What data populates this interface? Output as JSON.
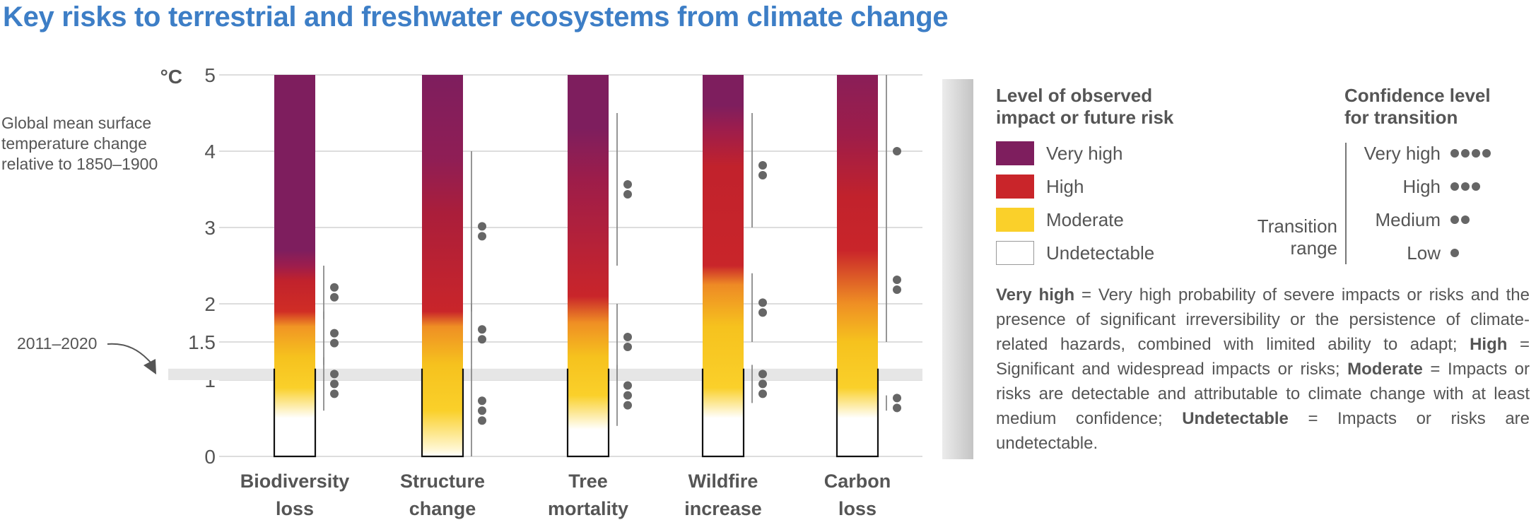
{
  "title": "Key risks to terrestrial and freshwater ecosystems from climate change",
  "chart_data": {
    "type": "bar",
    "title": "Key risks to terrestrial and freshwater ecosystems from climate change",
    "unit": "°C",
    "ylabel": "Global mean surface temperature change relative to 1850–1900",
    "ylim": [
      0,
      5
    ],
    "yticks": [
      "0",
      "1",
      "1.5",
      "2",
      "3",
      "4",
      "5"
    ],
    "ytick_values": [
      0,
      1,
      1.5,
      2,
      3,
      4,
      5
    ],
    "annotation": "2011–2020",
    "observed_band": [
      1.0,
      1.15
    ],
    "categories": [
      {
        "line1": "Biodiversity",
        "line2": "loss"
      },
      {
        "line1": "Structure",
        "line2": "change"
      },
      {
        "line1": "Tree",
        "line2": "mortality"
      },
      {
        "line1": "Wildfire",
        "line2": "increase"
      },
      {
        "line1": "Carbon",
        "line2": "loss"
      }
    ],
    "gradients": [
      [
        [
          0,
          "#ffffff"
        ],
        [
          0.5,
          "#ffffff"
        ],
        [
          0.9,
          "#fad02a"
        ],
        [
          1.3,
          "#f6c21e"
        ],
        [
          1.7,
          "#f19624"
        ],
        [
          1.9,
          "#d02d25"
        ],
        [
          2.3,
          "#c1222c"
        ],
        [
          2.5,
          "#9c1d4d"
        ],
        [
          2.7,
          "#7e1e5e"
        ],
        [
          5,
          "#7e1e5e"
        ]
      ],
      [
        [
          0,
          "#ffffff"
        ],
        [
          0.1,
          "#fff6d0"
        ],
        [
          0.6,
          "#fad02a"
        ],
        [
          1.2,
          "#f6c21e"
        ],
        [
          1.7,
          "#ef8f24"
        ],
        [
          1.9,
          "#c9252a"
        ],
        [
          3.2,
          "#aa1e3b"
        ],
        [
          3.9,
          "#8f1e55"
        ],
        [
          5,
          "#7e1e5e"
        ]
      ],
      [
        [
          0,
          "#ffffff"
        ],
        [
          0.35,
          "#ffffff"
        ],
        [
          0.8,
          "#fad02a"
        ],
        [
          1.3,
          "#f6c21e"
        ],
        [
          1.75,
          "#ef8f24"
        ],
        [
          2.1,
          "#c9252a"
        ],
        [
          3.6,
          "#9e1d49"
        ],
        [
          4.3,
          "#7e1e5e"
        ],
        [
          5,
          "#7e1e5e"
        ]
      ],
      [
        [
          0,
          "#ffffff"
        ],
        [
          0.5,
          "#ffffff"
        ],
        [
          0.9,
          "#fad02a"
        ],
        [
          1.7,
          "#f6c21e"
        ],
        [
          2.25,
          "#ee8a25"
        ],
        [
          2.5,
          "#c9252a"
        ],
        [
          3.8,
          "#c1222c"
        ],
        [
          4.3,
          "#9c1d4d"
        ],
        [
          4.6,
          "#7e1e5e"
        ],
        [
          5,
          "#7e1e5e"
        ]
      ],
      [
        [
          0,
          "#ffffff"
        ],
        [
          0.5,
          "#ffffff"
        ],
        [
          0.9,
          "#fad02a"
        ],
        [
          1.5,
          "#f6c21e"
        ],
        [
          2.0,
          "#ef8f24"
        ],
        [
          2.7,
          "#c9252a"
        ],
        [
          3.4,
          "#c1222c"
        ],
        [
          4.2,
          "#9e1d49"
        ],
        [
          5,
          "#8a1e58"
        ]
      ]
    ],
    "transitions": [
      [
        {
          "range": [
            0.6,
            1.3
          ],
          "confidence": "high",
          "dots": 3
        },
        {
          "range": [
            1.2,
            1.9
          ],
          "confidence": "medium",
          "dots": 2
        },
        {
          "range": [
            1.8,
            2.5
          ],
          "confidence": "medium",
          "dots": 2
        }
      ],
      [
        {
          "range": [
            0.0,
            1.2
          ],
          "confidence": "high",
          "dots": 3
        },
        {
          "range": [
            1.2,
            2.0
          ],
          "confidence": "medium",
          "dots": 2
        },
        {
          "range": [
            1.9,
            4.0
          ],
          "confidence": "medium",
          "dots": 2
        }
      ],
      [
        {
          "range": [
            0.4,
            1.2
          ],
          "confidence": "high",
          "dots": 3
        },
        {
          "range": [
            1.0,
            2.0
          ],
          "confidence": "medium",
          "dots": 2
        },
        {
          "range": [
            2.5,
            4.5
          ],
          "confidence": "medium",
          "dots": 2
        }
      ],
      [
        {
          "range": [
            0.7,
            1.2
          ],
          "confidence": "high",
          "dots": 3
        },
        {
          "range": [
            1.5,
            2.4
          ],
          "confidence": "medium",
          "dots": 2
        },
        {
          "range": [
            3.0,
            4.5
          ],
          "confidence": "medium",
          "dots": 2
        }
      ],
      [
        {
          "range": [
            0.6,
            0.8
          ],
          "confidence": "medium",
          "dots": 2
        },
        {
          "range": [
            1.5,
            3.0
          ],
          "confidence": "medium",
          "dots": 2
        },
        {
          "range": [
            3.0,
            5.0
          ],
          "confidence": "low",
          "dots": 1
        }
      ]
    ]
  },
  "legend": {
    "risk_title_1": "Level of observed",
    "risk_title_2": "impact or future risk",
    "items": [
      {
        "label": "Very high",
        "color": "#7e1e5e"
      },
      {
        "label": "High",
        "color": "#c9252a"
      },
      {
        "label": "Moderate",
        "color": "#fad02a"
      },
      {
        "label": "Undetectable",
        "color": "#ffffff"
      }
    ],
    "confidence_title_1": "Confidence level",
    "confidence_title_2": "for transition",
    "confidence": [
      {
        "label": "Very high",
        "dots": 4
      },
      {
        "label": "High",
        "dots": 3
      },
      {
        "label": "Medium",
        "dots": 2
      },
      {
        "label": "Low",
        "dots": 1
      }
    ],
    "transition_1": "Transition",
    "transition_2": "range"
  },
  "definitions": [
    {
      "term": "Very high",
      "text": " = Very high probability of severe impacts or risks and the presence of significant irreversibility or the persistence of climate-related hazards, combined with limited ability to adapt;"
    },
    {
      "term": "High",
      "text": " = Significant and widespread impacts or risks;"
    },
    {
      "term": "Moderate",
      "text": " = Impacts or risks are detectable and attributable to climate change with at least medium confidence;"
    },
    {
      "term": "Undetectable",
      "text": " = Impacts or risks are undetectable."
    }
  ]
}
